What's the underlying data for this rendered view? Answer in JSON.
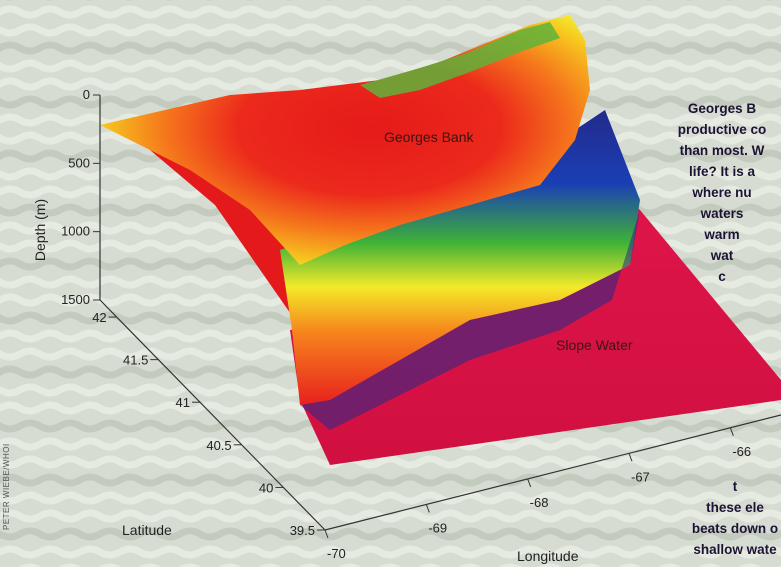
{
  "chart_data": {
    "type": "surface-3d",
    "x_axis": {
      "label": "Longitude",
      "ticks": [
        "-70",
        "-69",
        "-68",
        "-67",
        "-66"
      ],
      "range": [
        -70,
        -65.5
      ]
    },
    "y_axis": {
      "label": "Latitude",
      "ticks": [
        "39.5",
        "40",
        "40.5",
        "41",
        "41.5",
        "42"
      ],
      "range": [
        39.5,
        42.2
      ]
    },
    "z_axis": {
      "label": "Depth (m)",
      "ticks": [
        "0",
        "500",
        "1000",
        "1500"
      ],
      "range": [
        0,
        1500
      ]
    },
    "annotations": [
      "Georges Bank",
      "Slope Water"
    ],
    "color_scale": [
      "#d4143a",
      "#e8201e",
      "#f04a1c",
      "#f6861c",
      "#f6c21c",
      "#f4ea2a",
      "#b5da2e",
      "#3fb237",
      "#1b8f72",
      "#1a3fb4",
      "#232a8c"
    ]
  },
  "side_text": {
    "lines_top": [
      "Georges B",
      "productive co",
      "than most. W",
      "life? It is a",
      "where nu",
      "waters",
      "warm",
      "wat",
      "c"
    ],
    "lines_bottom": [
      "t",
      "these ele",
      "beats down o",
      "shallow wate"
    ]
  },
  "credit": "PETER WIEBE/WHOI"
}
